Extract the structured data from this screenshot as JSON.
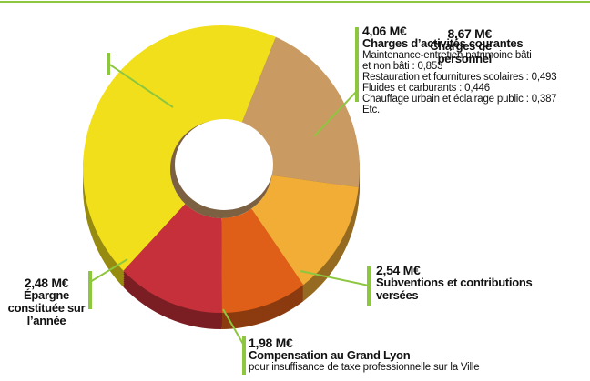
{
  "chart_data": {
    "type": "pie",
    "donut": true,
    "categories": [
      "Charges de personnel",
      "Charges d’activités courantes",
      "Subventions et contributions versées",
      "Compensation au Grand Lyon",
      "Épargne constituée sur l’année"
    ],
    "values": [
      8.67,
      4.06,
      2.54,
      1.98,
      2.48
    ],
    "value_labels": [
      "8,67 M€",
      "4,06 M€",
      "2,54 M€",
      "1,98 M€",
      "2,48 M€"
    ],
    "colors": [
      "#f2df1b",
      "#c99a62",
      "#f1ad36",
      "#e05f18",
      "#c5303a"
    ],
    "details": [
      null,
      [
        "Maintenance-entretien patrimoine bâti",
        "et non bâti : 0,853",
        "Restauration et fournitures scolaires : 0,493",
        "Fluides et carburants : 0,446",
        "Chauffage urbain et éclairage public : 0,387",
        "Etc."
      ],
      null,
      [
        "pour insuffisance de taxe professionnelle sur la Ville"
      ],
      null
    ]
  }
}
